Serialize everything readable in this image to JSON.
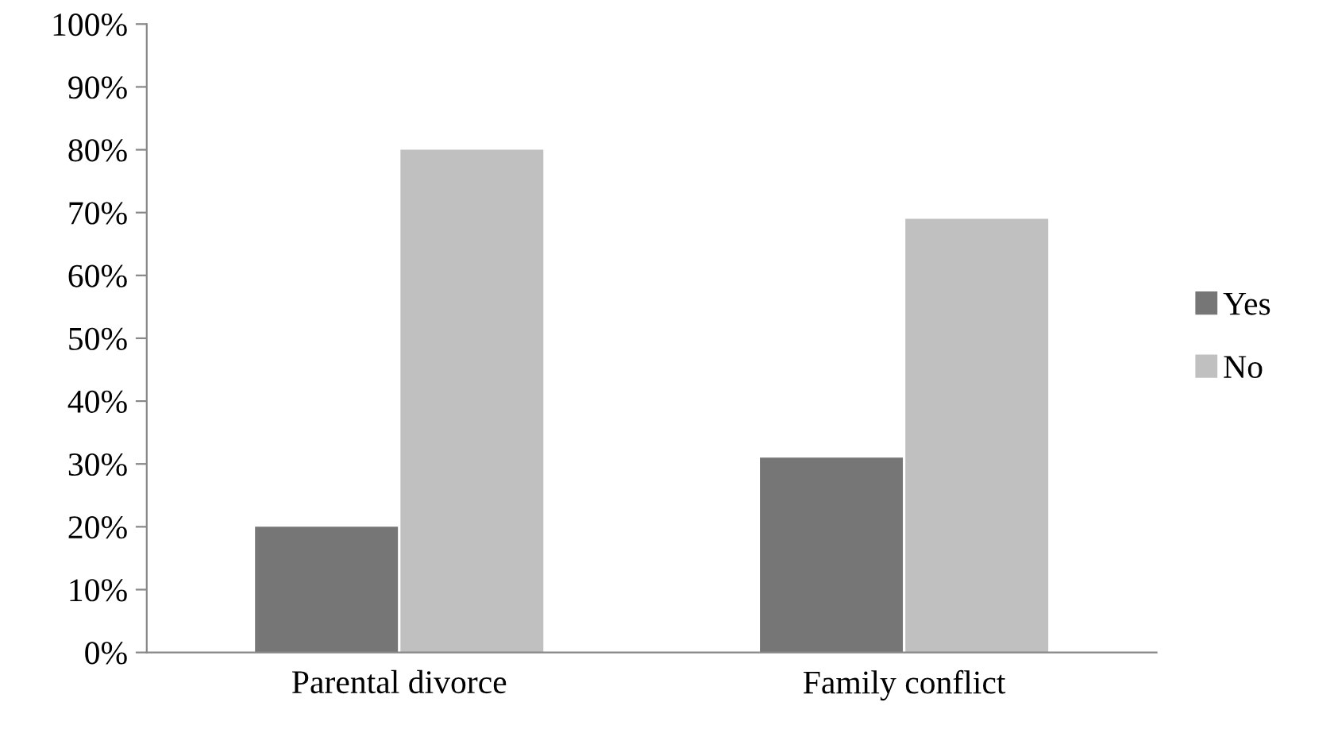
{
  "chart_data": {
    "type": "bar",
    "categories": [
      "Parental divorce",
      "Family conflict"
    ],
    "series": [
      {
        "name": "Yes",
        "color": "#767676",
        "values": [
          20,
          31
        ]
      },
      {
        "name": "No",
        "color": "#c0c0c0",
        "values": [
          80,
          69
        ]
      }
    ],
    "ylim": [
      0,
      100
    ],
    "yticks": [
      {
        "value": 0,
        "label": "0%"
      },
      {
        "value": 10,
        "label": "10%"
      },
      {
        "value": 20,
        "label": "20%"
      },
      {
        "value": 30,
        "label": "30%"
      },
      {
        "value": 40,
        "label": "40%"
      },
      {
        "value": 50,
        "label": "50%"
      },
      {
        "value": 60,
        "label": "60%"
      },
      {
        "value": 70,
        "label": "70%"
      },
      {
        "value": 80,
        "label": "80%"
      },
      {
        "value": 90,
        "label": "90%"
      },
      {
        "value": 100,
        "label": "100%"
      }
    ],
    "grid": false,
    "legend": "right"
  }
}
